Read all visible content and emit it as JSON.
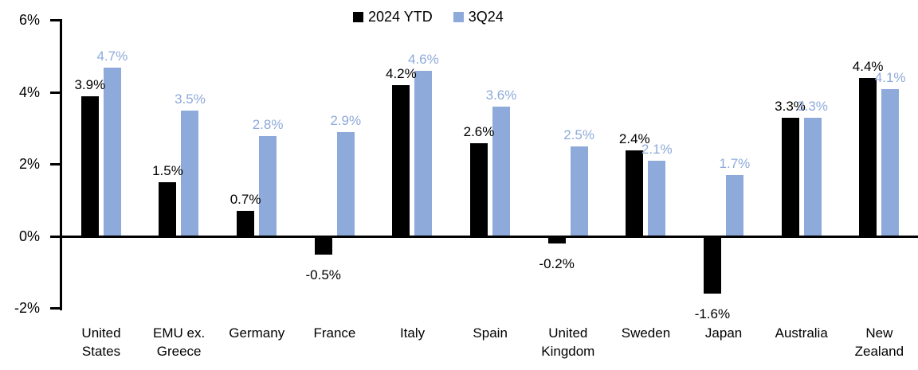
{
  "chart_data": {
    "type": "bar",
    "title": "",
    "categories": [
      "United States",
      "EMU ex. Greece",
      "Germany",
      "France",
      "Italy",
      "Spain",
      "United Kingdom",
      "Sweden",
      "Japan",
      "Australia",
      "New Zealand"
    ],
    "series": [
      {
        "name": "2024 YTD",
        "color": "#000000",
        "values": [
          3.9,
          1.5,
          0.7,
          -0.5,
          4.2,
          2.6,
          -0.2,
          2.4,
          -1.6,
          3.3,
          4.4
        ],
        "labels": [
          "3.9%",
          "1.5%",
          "0.7%",
          "-0.5%",
          "4.2%",
          "2.6%",
          "-0.2%",
          "2.4%",
          "-1.6%",
          "3.3%",
          "4.4%"
        ]
      },
      {
        "name": "3Q24",
        "color": "#8EAADB",
        "values": [
          4.7,
          3.5,
          2.8,
          2.9,
          4.6,
          3.6,
          2.5,
          2.1,
          1.7,
          3.3,
          4.1
        ],
        "labels": [
          "4.7%",
          "3.5%",
          "2.8%",
          "2.9%",
          "4.6%",
          "3.6%",
          "2.5%",
          "2.1%",
          "1.7%",
          "3.3%",
          "4.1%"
        ]
      }
    ],
    "y_axis": {
      "ticks": [
        {
          "label": "6%",
          "value": 6
        },
        {
          "label": "4%",
          "value": 4
        },
        {
          "label": "2%",
          "value": 2
        },
        {
          "label": "0%",
          "value": 0
        },
        {
          "label": "-2%",
          "value": -2
        }
      ],
      "ylim": [
        -2,
        6
      ]
    },
    "xlabel": "",
    "ylabel": "",
    "grid": false,
    "legend_position": "top-center",
    "axis_color": "#000000",
    "background_color": "#ffffff"
  }
}
